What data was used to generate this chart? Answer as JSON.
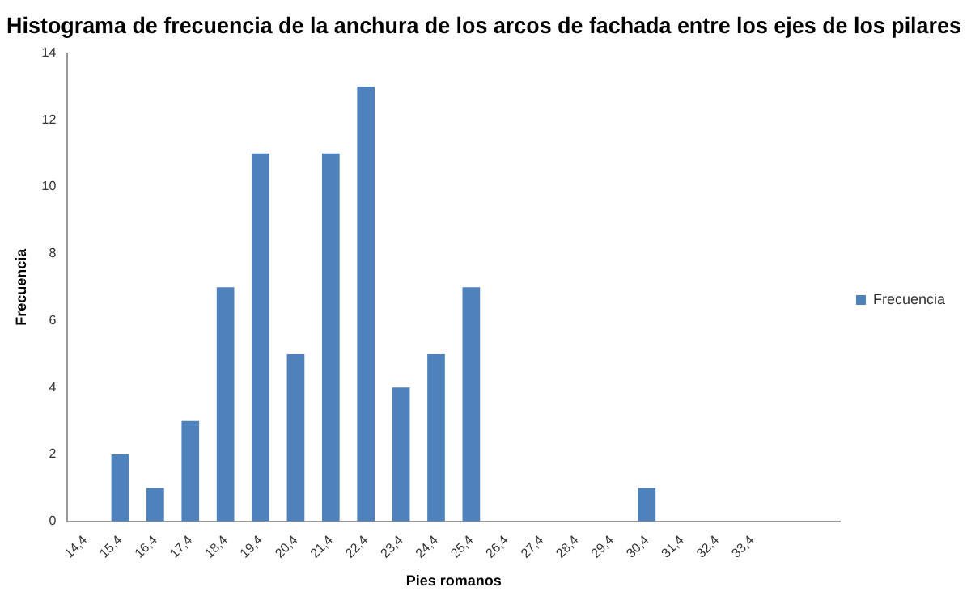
{
  "chart_data": {
    "type": "bar",
    "title": "Histograma de frecuencia de la anchura de los arcos de fachada entre los ejes de los pilares",
    "xlabel": "Pies romanos",
    "ylabel": "Frecuencia",
    "categories": [
      "14,4",
      "15,4",
      "16,4",
      "17,4",
      "18,4",
      "19,4",
      "20,4",
      "21,4",
      "22,4",
      "23,4",
      "24,4",
      "25,4",
      "26,4",
      "27,4",
      "28,4",
      "29,4",
      "30,4",
      "31,4",
      "32,4",
      "33,4",
      null,
      null
    ],
    "series": [
      {
        "name": "Frecuencia",
        "color": "#4f81bd",
        "values": [
          0,
          2,
          1,
          3,
          7,
          11,
          5,
          11,
          13,
          4,
          5,
          7,
          0,
          0,
          0,
          0,
          1,
          0,
          0,
          0,
          0,
          0
        ]
      }
    ],
    "ylim": [
      0,
      14
    ],
    "yticks": [
      0,
      2,
      4,
      6,
      8,
      10,
      12,
      14
    ],
    "grid": false,
    "legend": "right"
  }
}
